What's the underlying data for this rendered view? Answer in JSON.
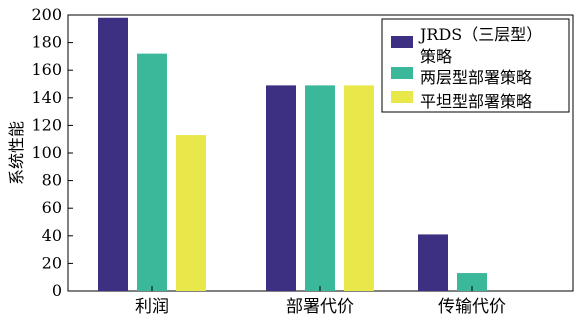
{
  "chart_data": {
    "type": "bar",
    "title": "",
    "xlabel": "",
    "ylabel": "系统性能",
    "ylim": [
      0,
      200
    ],
    "yticks": [
      0,
      20,
      40,
      60,
      80,
      100,
      120,
      140,
      160,
      180,
      200
    ],
    "categories": [
      "利润",
      "部署代价",
      "传输代价"
    ],
    "legend_position": "top-right",
    "grid": false,
    "series": [
      {
        "name_lines": [
          "JRDS（三层型）",
          "策略"
        ],
        "color": "#3d2f82",
        "values": [
          198,
          149,
          41
        ]
      },
      {
        "name_lines": [
          "两层型部署策略"
        ],
        "color": "#3bb89a",
        "values": [
          172,
          149,
          13
        ]
      },
      {
        "name_lines": [
          "平坦型部署策略"
        ],
        "color": "#e8e84a",
        "values": [
          113,
          149,
          0
        ]
      }
    ]
  }
}
